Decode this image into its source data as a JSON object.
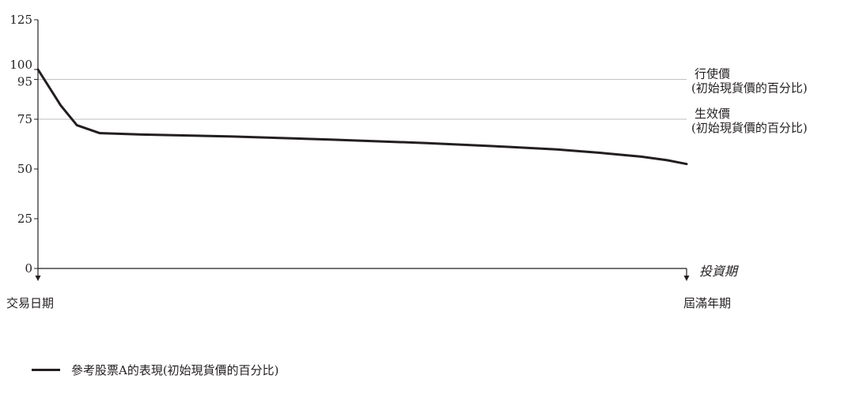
{
  "chart_data": {
    "type": "line",
    "xlabel": "投資期",
    "x_start_label": "交易日期",
    "x_end_label": "屆滿年期",
    "ylim": [
      0,
      125
    ],
    "yticks": [
      0,
      25,
      50,
      75,
      95,
      100,
      125
    ],
    "grid": false,
    "legend_position": "bottom-left",
    "reference_lines": [
      {
        "value": 95,
        "label_line1": "行使價",
        "label_line2": "(初始現貨價的百分比)",
        "color": "#bcbec0"
      },
      {
        "value": 75,
        "label_line1": "生效價",
        "label_line2": "(初始現貨價的百分比)",
        "color": "#bcbec0"
      }
    ],
    "series": [
      {
        "name": "參考股票A的表現(初始現貨價的百分比)",
        "color": "#231f20",
        "x": [
          0,
          0.035,
          0.06,
          0.095,
          0.16,
          0.3,
          0.45,
          0.6,
          0.7,
          0.8,
          0.87,
          0.93,
          0.97,
          1.0
        ],
        "y": [
          100,
          82,
          72,
          68,
          67.3,
          66.3,
          64.8,
          63,
          61.5,
          59.8,
          58,
          56.2,
          54.4,
          52.5
        ]
      }
    ]
  },
  "legend": {
    "label": "參考股票A的表現(初始現貨價的百分比)"
  }
}
